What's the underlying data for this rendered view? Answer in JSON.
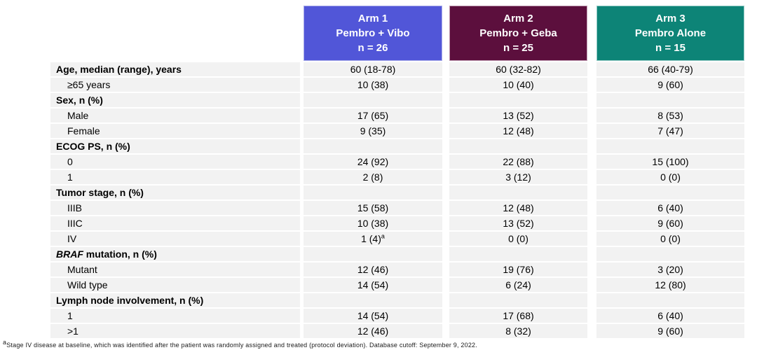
{
  "table": {
    "columns": [
      {
        "title": "Arm 1",
        "treatment": "Pembro + Vibo",
        "n_label": "n = 26",
        "color": "#5156d8",
        "border_color": "#a9ace9"
      },
      {
        "title": "Arm 2",
        "treatment": "Pembro + Geba",
        "n_label": "n = 25",
        "color": "#5c0f3d",
        "border_color": "#bf9ab1"
      },
      {
        "title": "Arm 3",
        "treatment": "Pembro Alone",
        "n_label": "n = 15",
        "color": "#0d8477",
        "border_color": "#96ccc7"
      }
    ],
    "row_band_color": "#f2f2f2",
    "rows": [
      {
        "label": "Age, median (range), years",
        "bold": true,
        "indent": false,
        "values": [
          "60 (18-78)",
          "60 (32-82)",
          "66 (40-79)"
        ]
      },
      {
        "label": "≥65 years",
        "bold": false,
        "indent": true,
        "values": [
          "10 (38)",
          "10 (40)",
          "9 (60)"
        ]
      },
      {
        "label": "Sex, n (%)",
        "bold": true,
        "indent": false,
        "values": [
          "",
          "",
          ""
        ]
      },
      {
        "label": "Male",
        "bold": false,
        "indent": true,
        "values": [
          "17 (65)",
          "13 (52)",
          "8 (53)"
        ]
      },
      {
        "label": "Female",
        "bold": false,
        "indent": true,
        "values": [
          "9 (35)",
          "12 (48)",
          "7 (47)"
        ]
      },
      {
        "label": "ECOG PS, n (%)",
        "bold": true,
        "indent": false,
        "values": [
          "",
          "",
          ""
        ]
      },
      {
        "label": "0",
        "bold": false,
        "indent": true,
        "values": [
          "24 (92)",
          "22 (88)",
          "15 (100)"
        ]
      },
      {
        "label": "1",
        "bold": false,
        "indent": true,
        "values": [
          "2 (8)",
          "3 (12)",
          "0 (0)"
        ]
      },
      {
        "label": "Tumor stage, n (%)",
        "bold": true,
        "indent": false,
        "values": [
          "",
          "",
          ""
        ]
      },
      {
        "label": "IIIB",
        "bold": false,
        "indent": true,
        "values": [
          "15 (58)",
          "12 (48)",
          "6 (40)"
        ]
      },
      {
        "label": "IIIC",
        "bold": false,
        "indent": true,
        "values": [
          "10 (38)",
          "13 (52)",
          "9 (60)"
        ]
      },
      {
        "label": "IV",
        "bold": false,
        "indent": true,
        "values": [
          "1 (4)",
          "0 (0)",
          "0 (0)"
        ],
        "sup": "a"
      },
      {
        "label_italic": "BRAF",
        "label_rest": " mutation, n (%)",
        "bold": true,
        "indent": false,
        "values": [
          "",
          "",
          ""
        ]
      },
      {
        "label": "Mutant",
        "bold": false,
        "indent": true,
        "values": [
          "12 (46)",
          "19 (76)",
          "3 (20)"
        ]
      },
      {
        "label": "Wild type",
        "bold": false,
        "indent": true,
        "values": [
          "14 (54)",
          "6 (24)",
          "12 (80)"
        ]
      },
      {
        "label": "Lymph node involvement, n (%)",
        "bold": true,
        "indent": false,
        "values": [
          "",
          "",
          ""
        ]
      },
      {
        "label": "1",
        "bold": false,
        "indent": true,
        "values": [
          "14 (54)",
          "17 (68)",
          "6 (40)"
        ]
      },
      {
        "label": ">1",
        "bold": false,
        "indent": true,
        "values": [
          "12 (46)",
          "8 (32)",
          "9 (60)"
        ]
      }
    ]
  },
  "footnote": {
    "marker": "a",
    "text": "Stage IV disease at baseline, which was identified after the patient was randomly assigned and treated (protocol deviation). Database cutoff: September 9, 2022."
  }
}
